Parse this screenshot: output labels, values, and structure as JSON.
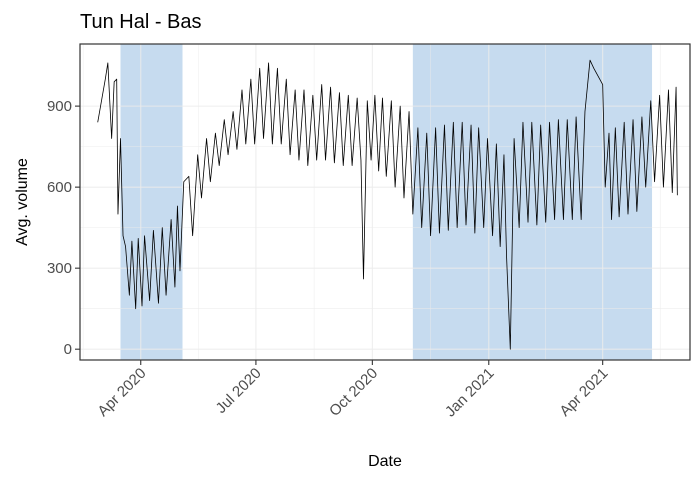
{
  "chart_data": {
    "type": "line",
    "title": "Tun Hal - Bas",
    "xlabel": "Date",
    "ylabel": "Avg. volume",
    "xlim": [
      "2020-02-13",
      "2021-06-09"
    ],
    "ylim": [
      -40,
      1130
    ],
    "grid": true,
    "legend": "none",
    "x_ticks": [
      {
        "date": "2020-04-01",
        "label": "Apr 2020"
      },
      {
        "date": "2020-07-01",
        "label": "Jul 2020"
      },
      {
        "date": "2020-10-01",
        "label": "Oct 2020"
      },
      {
        "date": "2021-01-01",
        "label": "Jan 2021"
      },
      {
        "date": "2021-04-01",
        "label": "Apr 2021"
      }
    ],
    "y_ticks": [
      0,
      300,
      600,
      900
    ],
    "shaded_periods": [
      {
        "start": "2020-03-16",
        "end": "2020-05-04"
      },
      {
        "start": "2020-11-02",
        "end": "2021-05-10"
      }
    ],
    "colors": {
      "line": "#000000",
      "shade": "#c6dbef",
      "grid": "#ebebeb",
      "axis": "#333333"
    },
    "series": [
      {
        "values": [
          [
            "2020-02-27",
            840
          ],
          [
            "2020-03-04",
            1000
          ],
          [
            "2020-03-06",
            1060
          ],
          [
            "2020-03-09",
            780
          ],
          [
            "2020-03-11",
            990
          ],
          [
            "2020-03-13",
            1000
          ],
          [
            "2020-03-14",
            500
          ],
          [
            "2020-03-16",
            780
          ],
          [
            "2020-03-18",
            420
          ],
          [
            "2020-03-20",
            380
          ],
          [
            "2020-03-23",
            200
          ],
          [
            "2020-03-25",
            400
          ],
          [
            "2020-03-28",
            150
          ],
          [
            "2020-03-30",
            410
          ],
          [
            "2020-04-02",
            160
          ],
          [
            "2020-04-04",
            420
          ],
          [
            "2020-04-08",
            180
          ],
          [
            "2020-04-11",
            440
          ],
          [
            "2020-04-15",
            170
          ],
          [
            "2020-04-18",
            450
          ],
          [
            "2020-04-21",
            200
          ],
          [
            "2020-04-25",
            480
          ],
          [
            "2020-04-28",
            230
          ],
          [
            "2020-04-30",
            530
          ],
          [
            "2020-05-02",
            290
          ],
          [
            "2020-05-05",
            620
          ],
          [
            "2020-05-09",
            640
          ],
          [
            "2020-05-12",
            420
          ],
          [
            "2020-05-16",
            720
          ],
          [
            "2020-05-19",
            560
          ],
          [
            "2020-05-23",
            780
          ],
          [
            "2020-05-26",
            620
          ],
          [
            "2020-05-30",
            800
          ],
          [
            "2020-06-02",
            680
          ],
          [
            "2020-06-06",
            850
          ],
          [
            "2020-06-09",
            720
          ],
          [
            "2020-06-13",
            880
          ],
          [
            "2020-06-16",
            740
          ],
          [
            "2020-06-20",
            960
          ],
          [
            "2020-06-23",
            760
          ],
          [
            "2020-06-27",
            1000
          ],
          [
            "2020-06-30",
            760
          ],
          [
            "2020-07-04",
            1040
          ],
          [
            "2020-07-07",
            780
          ],
          [
            "2020-07-11",
            1060
          ],
          [
            "2020-07-14",
            760
          ],
          [
            "2020-07-18",
            1040
          ],
          [
            "2020-07-21",
            760
          ],
          [
            "2020-07-25",
            1000
          ],
          [
            "2020-07-28",
            720
          ],
          [
            "2020-08-01",
            960
          ],
          [
            "2020-08-04",
            700
          ],
          [
            "2020-08-08",
            960
          ],
          [
            "2020-08-11",
            680
          ],
          [
            "2020-08-15",
            940
          ],
          [
            "2020-08-18",
            700
          ],
          [
            "2020-08-22",
            980
          ],
          [
            "2020-08-25",
            700
          ],
          [
            "2020-08-29",
            970
          ],
          [
            "2020-09-01",
            690
          ],
          [
            "2020-09-05",
            950
          ],
          [
            "2020-09-08",
            680
          ],
          [
            "2020-09-12",
            940
          ],
          [
            "2020-09-15",
            680
          ],
          [
            "2020-09-19",
            930
          ],
          [
            "2020-09-22",
            700
          ],
          [
            "2020-09-24",
            260
          ],
          [
            "2020-09-27",
            920
          ],
          [
            "2020-09-30",
            700
          ],
          [
            "2020-10-03",
            940
          ],
          [
            "2020-10-06",
            660
          ],
          [
            "2020-10-09",
            930
          ],
          [
            "2020-10-12",
            640
          ],
          [
            "2020-10-16",
            920
          ],
          [
            "2020-10-19",
            600
          ],
          [
            "2020-10-23",
            900
          ],
          [
            "2020-10-26",
            560
          ],
          [
            "2020-10-30",
            880
          ],
          [
            "2020-11-02",
            500
          ],
          [
            "2020-11-06",
            820
          ],
          [
            "2020-11-09",
            450
          ],
          [
            "2020-11-13",
            800
          ],
          [
            "2020-11-16",
            420
          ],
          [
            "2020-11-20",
            820
          ],
          [
            "2020-11-23",
            430
          ],
          [
            "2020-11-27",
            830
          ],
          [
            "2020-11-30",
            440
          ],
          [
            "2020-12-04",
            840
          ],
          [
            "2020-12-07",
            450
          ],
          [
            "2020-12-11",
            840
          ],
          [
            "2020-12-14",
            460
          ],
          [
            "2020-12-18",
            830
          ],
          [
            "2020-12-21",
            430
          ],
          [
            "2020-12-24",
            820
          ],
          [
            "2020-12-28",
            450
          ],
          [
            "2020-12-31",
            780
          ],
          [
            "2021-01-04",
            420
          ],
          [
            "2021-01-07",
            760
          ],
          [
            "2021-01-10",
            380
          ],
          [
            "2021-01-13",
            720
          ],
          [
            "2021-01-15",
            350
          ],
          [
            "2021-01-18",
            0
          ],
          [
            "2021-01-21",
            780
          ],
          [
            "2021-01-25",
            450
          ],
          [
            "2021-01-28",
            840
          ],
          [
            "2021-02-01",
            470
          ],
          [
            "2021-02-04",
            840
          ],
          [
            "2021-02-08",
            460
          ],
          [
            "2021-02-11",
            830
          ],
          [
            "2021-02-15",
            470
          ],
          [
            "2021-02-18",
            840
          ],
          [
            "2021-02-22",
            480
          ],
          [
            "2021-02-25",
            850
          ],
          [
            "2021-03-01",
            480
          ],
          [
            "2021-03-04",
            850
          ],
          [
            "2021-03-08",
            480
          ],
          [
            "2021-03-11",
            860
          ],
          [
            "2021-03-15",
            480
          ],
          [
            "2021-03-18",
            880
          ],
          [
            "2021-03-22",
            1070
          ],
          [
            "2021-03-25",
            1040
          ],
          [
            "2021-04-01",
            980
          ],
          [
            "2021-04-03",
            600
          ],
          [
            "2021-04-06",
            800
          ],
          [
            "2021-04-08",
            480
          ],
          [
            "2021-04-11",
            820
          ],
          [
            "2021-04-14",
            490
          ],
          [
            "2021-04-18",
            840
          ],
          [
            "2021-04-21",
            500
          ],
          [
            "2021-04-25",
            850
          ],
          [
            "2021-04-28",
            510
          ],
          [
            "2021-05-02",
            860
          ],
          [
            "2021-05-05",
            600
          ],
          [
            "2021-05-09",
            920
          ],
          [
            "2021-05-12",
            620
          ],
          [
            "2021-05-16",
            940
          ],
          [
            "2021-05-19",
            600
          ],
          [
            "2021-05-23",
            960
          ],
          [
            "2021-05-26",
            580
          ],
          [
            "2021-05-29",
            970
          ],
          [
            "2021-05-30",
            570
          ]
        ]
      }
    ]
  }
}
